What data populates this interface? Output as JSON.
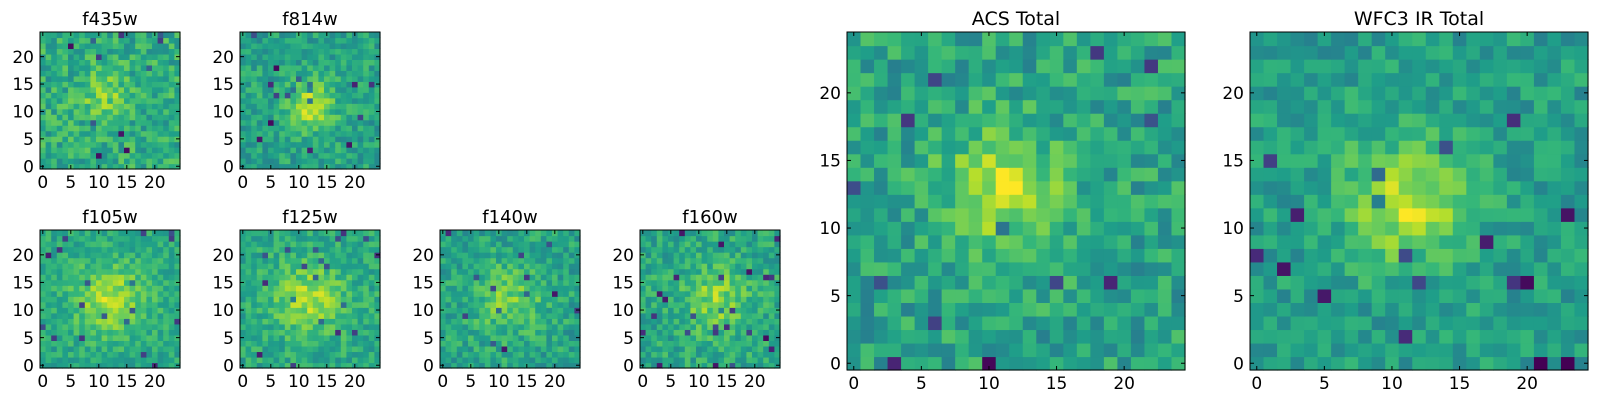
{
  "chart_data": [
    {
      "type": "heatmap",
      "title": "f435w",
      "xticks": [
        "0",
        "5",
        "10",
        "15",
        "20"
      ],
      "yticks": [
        "0",
        "5",
        "10",
        "15",
        "20"
      ],
      "xlim": [
        0,
        24
      ],
      "ylim": [
        0,
        24
      ],
      "grid": false,
      "colormap": "viridis"
    },
    {
      "type": "heatmap",
      "title": "f814w",
      "xticks": [
        "0",
        "5",
        "10",
        "15",
        "20"
      ],
      "yticks": [
        "0",
        "5",
        "10",
        "15",
        "20"
      ],
      "xlim": [
        0,
        24
      ],
      "ylim": [
        0,
        24
      ],
      "grid": false,
      "colormap": "viridis"
    },
    {
      "type": "heatmap",
      "title": "f105w",
      "xticks": [
        "0",
        "5",
        "10",
        "15",
        "20"
      ],
      "yticks": [
        "0",
        "5",
        "10",
        "15",
        "20"
      ],
      "xlim": [
        0,
        24
      ],
      "ylim": [
        0,
        24
      ],
      "grid": false,
      "colormap": "viridis"
    },
    {
      "type": "heatmap",
      "title": "f125w",
      "xticks": [
        "0",
        "5",
        "10",
        "15",
        "20"
      ],
      "yticks": [
        "0",
        "5",
        "10",
        "15",
        "20"
      ],
      "xlim": [
        0,
        24
      ],
      "ylim": [
        0,
        24
      ],
      "grid": false,
      "colormap": "viridis"
    },
    {
      "type": "heatmap",
      "title": "f140w",
      "xticks": [
        "0",
        "5",
        "10",
        "15",
        "20"
      ],
      "yticks": [
        "0",
        "5",
        "10",
        "15",
        "20"
      ],
      "xlim": [
        0,
        24
      ],
      "ylim": [
        0,
        24
      ],
      "grid": false,
      "colormap": "viridis"
    },
    {
      "type": "heatmap",
      "title": "f160w",
      "xticks": [
        "0",
        "5",
        "10",
        "15",
        "20"
      ],
      "yticks": [
        "0",
        "5",
        "10",
        "15",
        "20"
      ],
      "xlim": [
        0,
        24
      ],
      "ylim": [
        0,
        24
      ],
      "grid": false,
      "colormap": "viridis"
    },
    {
      "type": "heatmap",
      "title": "ACS Total",
      "xticks": [
        "0",
        "5",
        "10",
        "15",
        "20"
      ],
      "yticks": [
        "0",
        "5",
        "10",
        "15",
        "20"
      ],
      "xlim": [
        0,
        24
      ],
      "ylim": [
        0,
        24
      ],
      "grid": false,
      "colormap": "viridis"
    },
    {
      "type": "heatmap",
      "title": "WFC3 IR Total",
      "xticks": [
        "0",
        "5",
        "10",
        "15",
        "20"
      ],
      "yticks": [
        "0",
        "5",
        "10",
        "15",
        "20"
      ],
      "xlim": [
        0,
        24
      ],
      "ylim": [
        0,
        24
      ],
      "grid": false,
      "colormap": "viridis"
    }
  ]
}
